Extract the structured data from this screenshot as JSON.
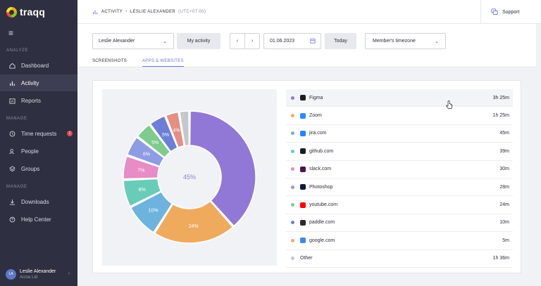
{
  "app": {
    "logo_text": "traqq"
  },
  "sidebar": {
    "sections": {
      "analyze": "ANALYZE",
      "manage": "MANAGE",
      "manage2": "MANAGE"
    },
    "items": [
      {
        "label": "Dashboard",
        "icon": "home-icon"
      },
      {
        "label": "Activity",
        "icon": "bar-chart-icon"
      },
      {
        "label": "Reports",
        "icon": "reports-icon"
      },
      {
        "label": "Time requests",
        "icon": "clock-icon",
        "badge": "1"
      },
      {
        "label": "People",
        "icon": "people-icon"
      },
      {
        "label": "Groups",
        "icon": "layers-icon"
      },
      {
        "label": "Downloads",
        "icon": "download-icon"
      },
      {
        "label": "Help Center",
        "icon": "help-icon"
      }
    ],
    "user": {
      "initials": "LA",
      "name": "Leslie Alexander",
      "org": "Acme Ltd"
    }
  },
  "header": {
    "section": "ACTIVITY",
    "user": "LESLIE ALEXANDER",
    "timezone": "(UTC+07:00)",
    "support_label": "Support"
  },
  "toolbar": {
    "user_select": "Leslie Alexander",
    "my_activity": "My activity",
    "prev": "‹",
    "next": "›",
    "date": "01.06.2023",
    "today": "Today",
    "timezone_select": "Member's timezone"
  },
  "tabs": [
    {
      "label": "SCREENSHOTS",
      "active": false
    },
    {
      "label": "APPS & WEBSITES",
      "active": true
    }
  ],
  "apps": [
    {
      "name": "Figma",
      "duration": "3h 25m",
      "color": "#9178d6",
      "icon": "figma-icon",
      "icon_color": "#1e1e1e",
      "highlight": true
    },
    {
      "name": "Zoom",
      "duration": "1h 25m",
      "color": "#f0aa5e",
      "icon": "zoom-icon",
      "icon_color": "#2d8cff"
    },
    {
      "name": "jira.com",
      "duration": "45m",
      "color": "#6db3de",
      "icon": "jira-icon",
      "icon_color": "#2684ff"
    },
    {
      "name": "github.com",
      "duration": "39m",
      "color": "#68ccb8",
      "icon": "github-icon",
      "icon_color": "#1b1f24"
    },
    {
      "name": "slack.com",
      "duration": "30m",
      "color": "#e88cc5",
      "icon": "slack-icon",
      "icon_color": "#4a154b"
    },
    {
      "name": "Photoshop",
      "duration": "28m",
      "color": "#8e9ce4",
      "icon": "photoshop-icon",
      "icon_color": "#0b1d39"
    },
    {
      "name": "youtube.com",
      "duration": "24m",
      "color": "#7ecb8b",
      "icon": "youtube-icon",
      "icon_color": "#ff0000"
    },
    {
      "name": "paddle.com",
      "duration": "10m",
      "color": "#6b7fd8",
      "icon": "paddle-icon",
      "icon_color": "#2a2a2a"
    },
    {
      "name": "google.com",
      "duration": "5m",
      "color": "#f3a66f",
      "icon": "google-icon",
      "icon_color": "#4285f4"
    },
    {
      "name": "Other",
      "duration": "1h 36m",
      "color": "#c5c7cc",
      "icon": "",
      "icon_color": ""
    }
  ],
  "chart_data": {
    "type": "pie",
    "center_label": "45%",
    "slices": [
      {
        "name": "Figma",
        "value": 45,
        "label": "45%",
        "color": "#9178d6"
      },
      {
        "name": "Zoom",
        "value": 24,
        "label": "24%",
        "color": "#f0aa5e"
      },
      {
        "name": "jira.com",
        "value": 10,
        "label": "10%",
        "color": "#6db3de"
      },
      {
        "name": "github.com",
        "value": 8,
        "label": "8%",
        "color": "#68ccb8"
      },
      {
        "name": "slack.com",
        "value": 7,
        "label": "7%",
        "color": "#e88cc5"
      },
      {
        "name": "Photoshop",
        "value": 6,
        "label": "6%",
        "color": "#8e9ce4"
      },
      {
        "name": "youtube.com",
        "value": 5,
        "label": "5%",
        "color": "#7ecb8b"
      },
      {
        "name": "paddle.com",
        "value": 5,
        "label": "5%",
        "color": "#6b7fd8"
      },
      {
        "name": "google.com",
        "value": 4,
        "label": "4%",
        "color": "#e58e84"
      },
      {
        "name": "Other",
        "value": 3,
        "label": "",
        "color": "#c5c7cc"
      }
    ]
  }
}
